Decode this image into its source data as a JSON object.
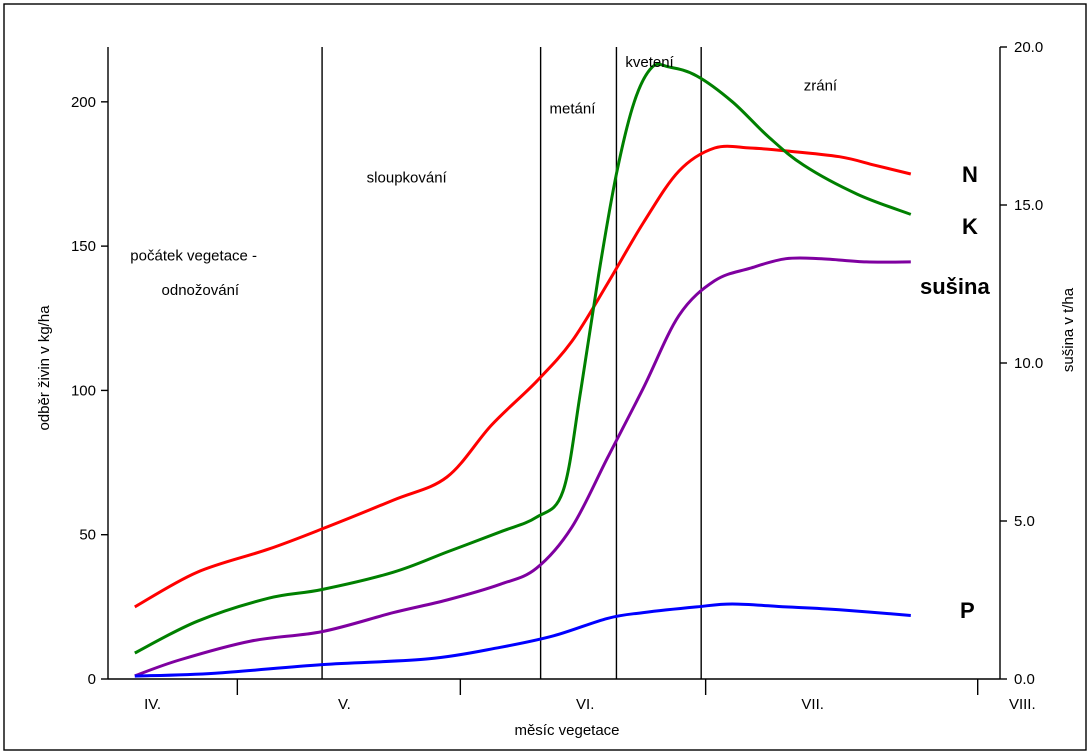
{
  "chart_data": {
    "type": "line",
    "xlabel": "měsíc vegetace",
    "ylabel": "odběr živin v kg/ha",
    "ylabel_right": "sušina v t/ha",
    "ylim": [
      0,
      219
    ],
    "ylim_right": [
      0,
      20
    ],
    "yticks": [
      0,
      50,
      100,
      150,
      200
    ],
    "yticks_right": [
      "0.0",
      "5.0",
      "10.0",
      "15.0",
      "20.0"
    ],
    "xlim": [
      0,
      100
    ],
    "month_ticks": [
      {
        "label": "IV.",
        "x": 5
      },
      {
        "label": "V.",
        "x": 26.5
      },
      {
        "label": "VI.",
        "x": 53.5
      },
      {
        "label": "VII.",
        "x": 79
      },
      {
        "label": "VIII.",
        "x": 102.5
      }
    ],
    "minor_ticks_x": [
      14.5,
      39.5,
      67,
      97.5
    ],
    "phase_dividers_x": [
      24,
      48.5,
      57,
      66.5
    ],
    "phases": [
      {
        "label": "počátek vegetace   -",
        "x": 2.5,
        "y": 145
      },
      {
        "label": "odnožování",
        "x": 6,
        "y": 133
      },
      {
        "label": "sloupkování",
        "x": 29,
        "y": 172
      },
      {
        "label": "metání",
        "x": 49.5,
        "y": 196
      },
      {
        "label": "kvetení",
        "x": 58,
        "y": 212
      },
      {
        "label": "zrání",
        "x": 78,
        "y": 204
      }
    ],
    "series": [
      {
        "name": "N",
        "color": "#ff0000",
        "axis": "left",
        "points": [
          [
            3,
            25
          ],
          [
            10,
            37
          ],
          [
            18,
            45
          ],
          [
            24,
            52
          ],
          [
            32,
            62
          ],
          [
            38,
            70
          ],
          [
            43,
            88
          ],
          [
            48,
            103
          ],
          [
            52,
            117
          ],
          [
            56,
            137
          ],
          [
            60,
            158
          ],
          [
            64,
            176
          ],
          [
            68,
            184
          ],
          [
            72,
            184
          ],
          [
            76,
            183
          ],
          [
            82,
            181
          ],
          [
            86,
            178
          ],
          [
            90,
            175
          ]
        ]
      },
      {
        "name": "K",
        "color": "#008000",
        "axis": "left",
        "points": [
          [
            3,
            9
          ],
          [
            10,
            20
          ],
          [
            18,
            28
          ],
          [
            24,
            31
          ],
          [
            32,
            37
          ],
          [
            38,
            44
          ],
          [
            44,
            51
          ],
          [
            48,
            56
          ],
          [
            51,
            65
          ],
          [
            53,
            100
          ],
          [
            55,
            140
          ],
          [
            57,
            175
          ],
          [
            59,
            200
          ],
          [
            61,
            212
          ],
          [
            63,
            212
          ],
          [
            66,
            209
          ],
          [
            70,
            200
          ],
          [
            74,
            188
          ],
          [
            78,
            178
          ],
          [
            84,
            168
          ],
          [
            90,
            161
          ]
        ]
      },
      {
        "name": "sušina",
        "color": "#7f00a0",
        "axis": "right",
        "points": [
          [
            3,
            0.1
          ],
          [
            8,
            0.6
          ],
          [
            16,
            1.2
          ],
          [
            24,
            1.5
          ],
          [
            32,
            2.1
          ],
          [
            38,
            2.5
          ],
          [
            44,
            3.0
          ],
          [
            48,
            3.5
          ],
          [
            52,
            4.8
          ],
          [
            56,
            7.0
          ],
          [
            60,
            9.2
          ],
          [
            64,
            11.5
          ],
          [
            68,
            12.6
          ],
          [
            72,
            13.0
          ],
          [
            76,
            13.3
          ],
          [
            80,
            13.3
          ],
          [
            85,
            13.2
          ],
          [
            90,
            13.2
          ]
        ]
      },
      {
        "name": "P",
        "color": "#0000ff",
        "axis": "left",
        "points": [
          [
            3,
            1
          ],
          [
            12,
            2
          ],
          [
            24,
            5
          ],
          [
            36,
            7
          ],
          [
            44,
            11
          ],
          [
            50,
            15
          ],
          [
            56,
            21
          ],
          [
            60,
            23
          ],
          [
            66,
            25
          ],
          [
            70,
            26
          ],
          [
            76,
            25
          ],
          [
            82,
            24
          ],
          [
            90,
            22
          ]
        ]
      }
    ]
  }
}
